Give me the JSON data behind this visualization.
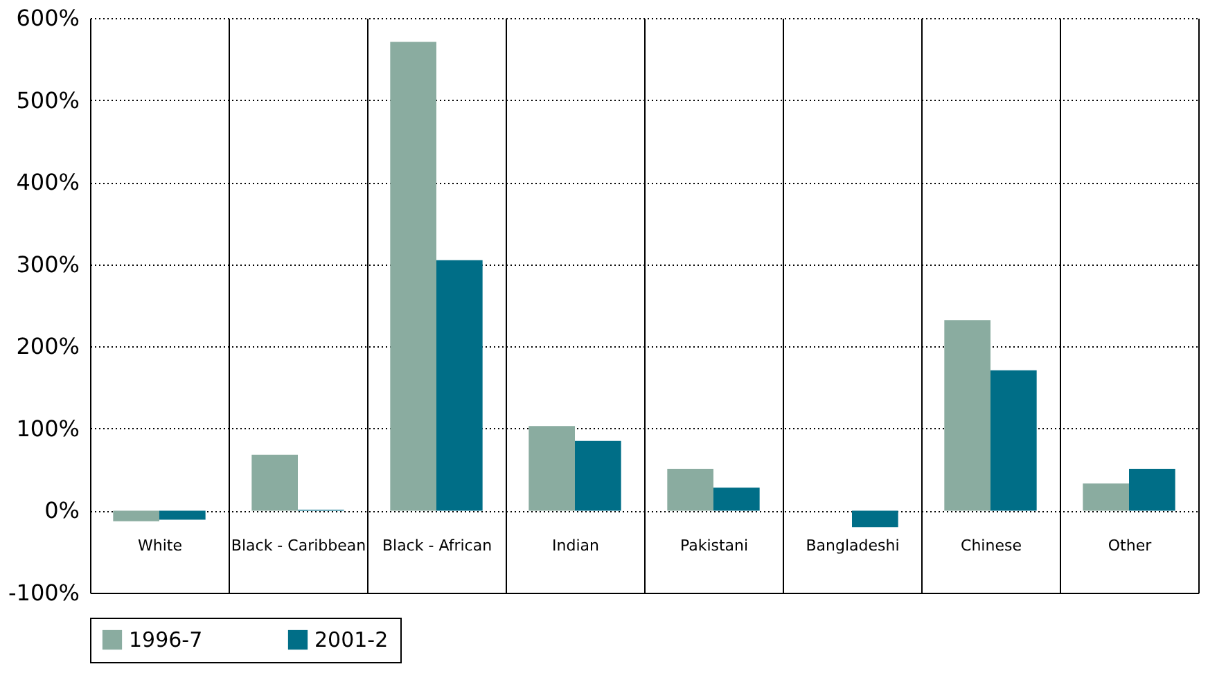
{
  "chart_data": {
    "type": "bar",
    "categories": [
      "White",
      "Black - Caribbean",
      "Black - African",
      "Indian",
      "Pakistani",
      "Bangladeshi",
      "Chinese",
      "Other"
    ],
    "series": [
      {
        "name": "1996-7",
        "color": "#8aaca0",
        "values": [
          -13,
          68,
          571,
          103,
          51,
          null,
          232,
          33
        ]
      },
      {
        "name": "2001-2",
        "color": "#006e87",
        "values": [
          -11,
          1,
          305,
          85,
          28,
          -20,
          171,
          51
        ]
      }
    ],
    "ylim": [
      -100,
      600
    ],
    "yticks": [
      {
        "value": -100,
        "label": "-100%"
      },
      {
        "value": 0,
        "label": "0%"
      },
      {
        "value": 100,
        "label": "100%"
      },
      {
        "value": 200,
        "label": "200%"
      },
      {
        "value": 300,
        "label": "300%"
      },
      {
        "value": 400,
        "label": "400%"
      },
      {
        "value": 500,
        "label": "500%"
      },
      {
        "value": 600,
        "label": "600%"
      }
    ],
    "grid": true,
    "legend": "bottom"
  }
}
